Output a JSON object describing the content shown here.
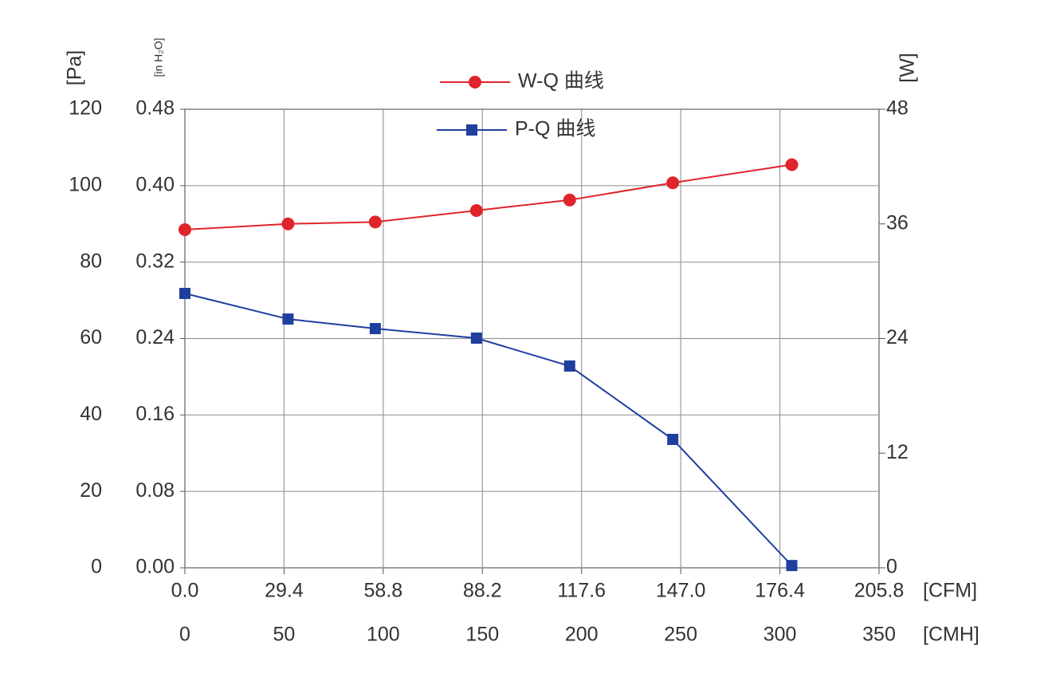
{
  "chart_data": {
    "type": "line",
    "legend": "top",
    "grid": true,
    "xlabel": "[CMH]",
    "x2label": "[CFM]",
    "ylabel": "[Pa]",
    "y3label": "[in H₂O]",
    "y2label": "[W]",
    "x": [
      0,
      52,
      96,
      147,
      194,
      246,
      306
    ],
    "xlim": [
      0,
      350
    ],
    "xticks": [
      0,
      50,
      100,
      150,
      200,
      250,
      300,
      350
    ],
    "x2lim": [
      0,
      205.8
    ],
    "x2ticks": [
      {
        "value": 0,
        "label": "0.0"
      },
      29.4,
      58.8,
      88.2,
      117.6,
      {
        "value": 147,
        "label": "147.0"
      },
      176.4,
      205.8
    ],
    "ylim": [
      0,
      120
    ],
    "yticks": [
      0,
      20,
      40,
      60,
      80,
      100,
      120
    ],
    "y3lim": [
      0,
      0.48
    ],
    "y3ticks": [
      {
        "value": 0,
        "label": "0.00"
      },
      0.08,
      0.16,
      0.24,
      0.32,
      {
        "value": 0.4,
        "label": "0.40"
      },
      0.48
    ],
    "y2lim": [
      0,
      48
    ],
    "y2ticks": [
      0,
      12,
      24,
      36,
      48
    ],
    "series": [
      {
        "name": "W-Q 曲线",
        "color": "#e0242b",
        "marker": "circle",
        "axis": "y2",
        "values": [
          35.4,
          36.0,
          36.2,
          37.4,
          38.5,
          40.3,
          42.2
        ]
      },
      {
        "name": "P-Q 曲线",
        "color": "#1f3f9e",
        "marker": "square",
        "values": [
          71.8,
          65.1,
          62.6,
          60.1,
          52.8,
          33.6,
          0.6
        ]
      }
    ]
  }
}
